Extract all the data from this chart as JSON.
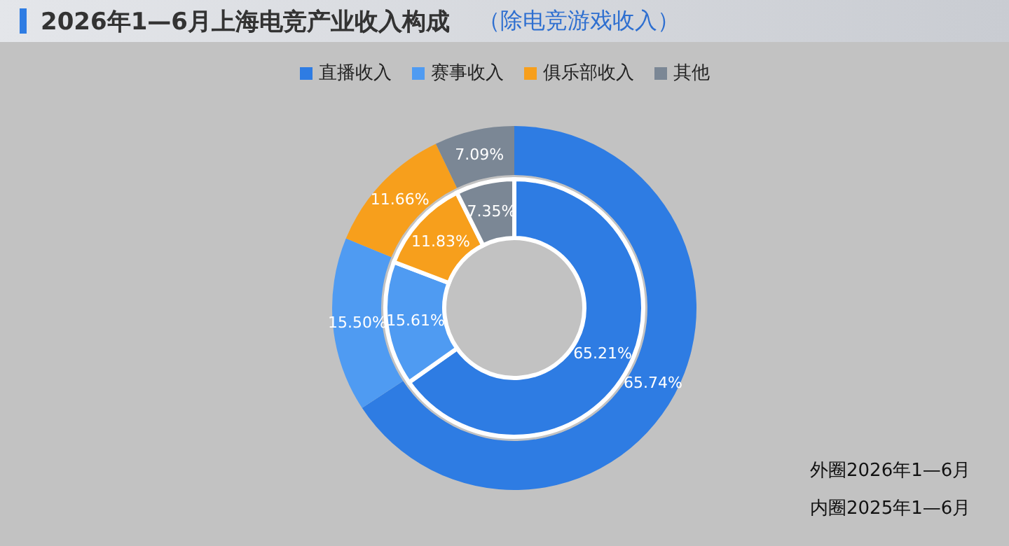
{
  "chart_data": {
    "type": "donut",
    "title": "2026年1—6月上海电竞产业收入构成",
    "subtitle": "（除电竞游戏收入）",
    "categories": [
      "直播收入",
      "赛事收入",
      "俱乐部收入",
      "其他"
    ],
    "colors": [
      "#2e7ce3",
      "#4f9bf2",
      "#f79f1c",
      "#7b8795"
    ],
    "series": [
      {
        "values": [
          65.74,
          15.5,
          11.66,
          7.09
        ],
        "value_labels": [
          "65.74%",
          "15.50%",
          "11.66%",
          "7.09%"
        ]
      },
      {
        "values": [
          65.21,
          15.61,
          11.83,
          7.35
        ],
        "value_labels": [
          "65.21%",
          "15.61%",
          "11.83%",
          "7.35%"
        ]
      }
    ],
    "legend": "top",
    "annotations": [
      "外圈2026年1—6月",
      "内圈2025年1—6月"
    ]
  }
}
